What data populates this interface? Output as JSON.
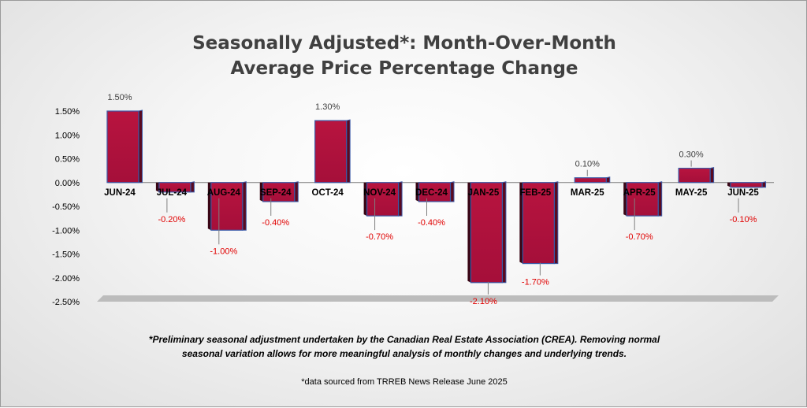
{
  "title": {
    "line1": "Seasonally Adjusted*:  Month-Over-Month",
    "line2": "Average Price Percentage Change"
  },
  "footnote": {
    "line1": "*Preliminary seasonal adjustment undertaken by the Canadian Real Estate Association (CREA).  Removing normal",
    "line2": "seasonal variation allows for more meaningful analysis of monthly changes and underlying trends."
  },
  "source": "*data sourced from TRREB News Release June 2025",
  "colors": {
    "bar_fill": "#a50f3a",
    "bar_edge": "#3b5aa8",
    "negative_label": "#e00000",
    "positive_label": "#404040",
    "floor": "#bcbcbc"
  },
  "chart_data": {
    "type": "bar",
    "title": "Seasonally Adjusted*:  Month-Over-Month Average Price Percentage Change",
    "xlabel": "",
    "ylabel": "",
    "categories": [
      "JUN-24",
      "JUL-24",
      "AUG-24",
      "SEP-24",
      "OCT-24",
      "NOV-24",
      "DEC-24",
      "JAN-25",
      "FEB-25",
      "MAR-25",
      "APR-25",
      "MAY-25",
      "JUN-25"
    ],
    "values": [
      1.5,
      -0.2,
      -1.0,
      -0.4,
      1.3,
      -0.7,
      -0.4,
      -2.1,
      -1.7,
      0.1,
      -0.7,
      0.3,
      -0.1
    ],
    "data_labels": [
      "1.50%",
      "-0.20%",
      "-1.00%",
      "-0.40%",
      "1.30%",
      "-0.70%",
      "-0.40%",
      "-2.10%",
      "-1.70%",
      "0.10%",
      "-0.70%",
      "0.30%",
      "-0.10%"
    ],
    "y_ticks": [
      1.5,
      1.0,
      0.5,
      0.0,
      -0.5,
      -1.0,
      -1.5,
      -2.0,
      -2.5
    ],
    "y_tick_labels": [
      "1.50%",
      "1.00%",
      "0.50%",
      "0.00%",
      "-0.50%",
      "-1.00%",
      "-1.50%",
      "-2.00%",
      "-2.50%"
    ],
    "ylim": [
      -2.5,
      1.5
    ],
    "grid": false,
    "legend": "none"
  }
}
